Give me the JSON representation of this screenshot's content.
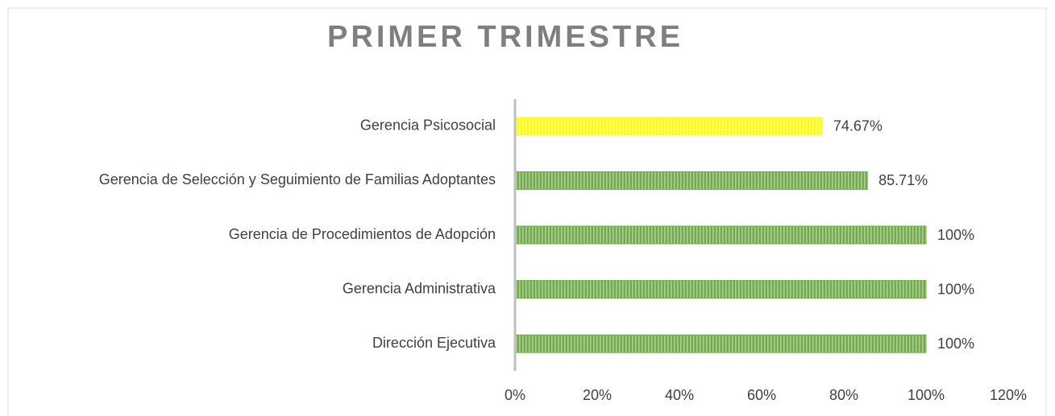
{
  "chart_data": {
    "type": "bar",
    "orientation": "horizontal",
    "title": "PRIMER TRIMESTRE",
    "categories": [
      "Gerencia Psicosocial",
      "Gerencia de Selección y Seguimiento de Familias Adoptantes",
      "Gerencia de Procedimientos de Adopción",
      "Gerencia Administrativa",
      "Dirección Ejecutiva"
    ],
    "values": [
      74.67,
      85.71,
      100,
      100,
      100
    ],
    "value_labels": [
      "74.67%",
      "85.71%",
      "100%",
      "100%",
      "100%"
    ],
    "colors": [
      "#ffff00",
      "#70ad47",
      "#70ad47",
      "#70ad47",
      "#70ad47"
    ],
    "xlim": [
      0,
      120
    ],
    "xticks": [
      {
        "value": 0,
        "label": "0%"
      },
      {
        "value": 20,
        "label": "20%"
      },
      {
        "value": 40,
        "label": "40%"
      },
      {
        "value": 60,
        "label": "60%"
      },
      {
        "value": 80,
        "label": "80%"
      },
      {
        "value": 100,
        "label": "100%"
      },
      {
        "value": 120,
        "label": "120%"
      }
    ],
    "grid": false
  }
}
